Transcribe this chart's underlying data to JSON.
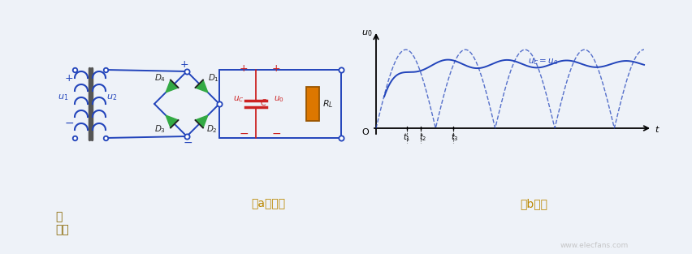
{
  "bg_color": "#eef2f8",
  "label_a": "（a）电路",
  "label_b": "（b）波",
  "label_tu": "图",
  "label_xingtu": "形图",
  "circuit_color": "#2244bb",
  "red_color": "#cc2222",
  "green_color": "#33aa44",
  "orange_color": "#dd7700",
  "waveform_color": "#2244bb",
  "watermark": "www.elecfans.com",
  "fig_w": 8.52,
  "fig_h": 3.13,
  "dpi": 100
}
